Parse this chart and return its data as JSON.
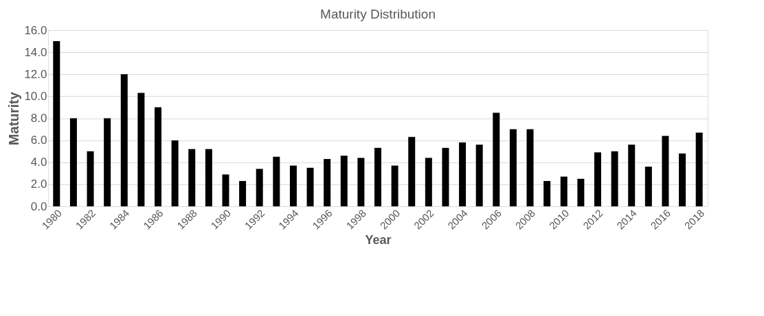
{
  "chart_data": {
    "type": "bar",
    "title": "Maturity Distribution",
    "xlabel": "Year",
    "ylabel": "Maturity",
    "categories": [
      "1980",
      null,
      "1982",
      null,
      "1984",
      null,
      "1986",
      null,
      "1988",
      null,
      "1990",
      null,
      "1992",
      null,
      "1994",
      null,
      "1996",
      null,
      "1998",
      null,
      "2000",
      null,
      "2002",
      null,
      "2004",
      null,
      "2006",
      null,
      "2008",
      null,
      "2010",
      null,
      "2012",
      null,
      "2014",
      null,
      "2016",
      null,
      "2018"
    ],
    "values": [
      15.0,
      8.0,
      5.0,
      8.0,
      12.0,
      10.3,
      9.0,
      6.0,
      5.2,
      5.2,
      2.9,
      2.3,
      3.4,
      4.5,
      3.7,
      3.5,
      4.3,
      4.6,
      4.4,
      5.3,
      3.7,
      6.3,
      4.4,
      5.3,
      5.8,
      5.6,
      8.5,
      7.0,
      7.0,
      2.3,
      2.7,
      2.5,
      4.9,
      5.0,
      5.6,
      3.6,
      6.4,
      4.8,
      6.7
    ],
    "color": "#000000",
    "ylim": [
      0,
      16
    ],
    "yticks": [
      {
        "value": 0,
        "label": "0.0"
      },
      {
        "value": 2,
        "label": "2.0"
      },
      {
        "value": 4,
        "label": "4.0"
      },
      {
        "value": 6,
        "label": "6.0"
      },
      {
        "value": 8,
        "label": "8.0"
      },
      {
        "value": 10,
        "label": "10.0"
      },
      {
        "value": 12,
        "label": "12.0"
      },
      {
        "value": 14,
        "label": "14.0"
      },
      {
        "value": 16,
        "label": "16.0"
      }
    ],
    "grid": "y"
  }
}
